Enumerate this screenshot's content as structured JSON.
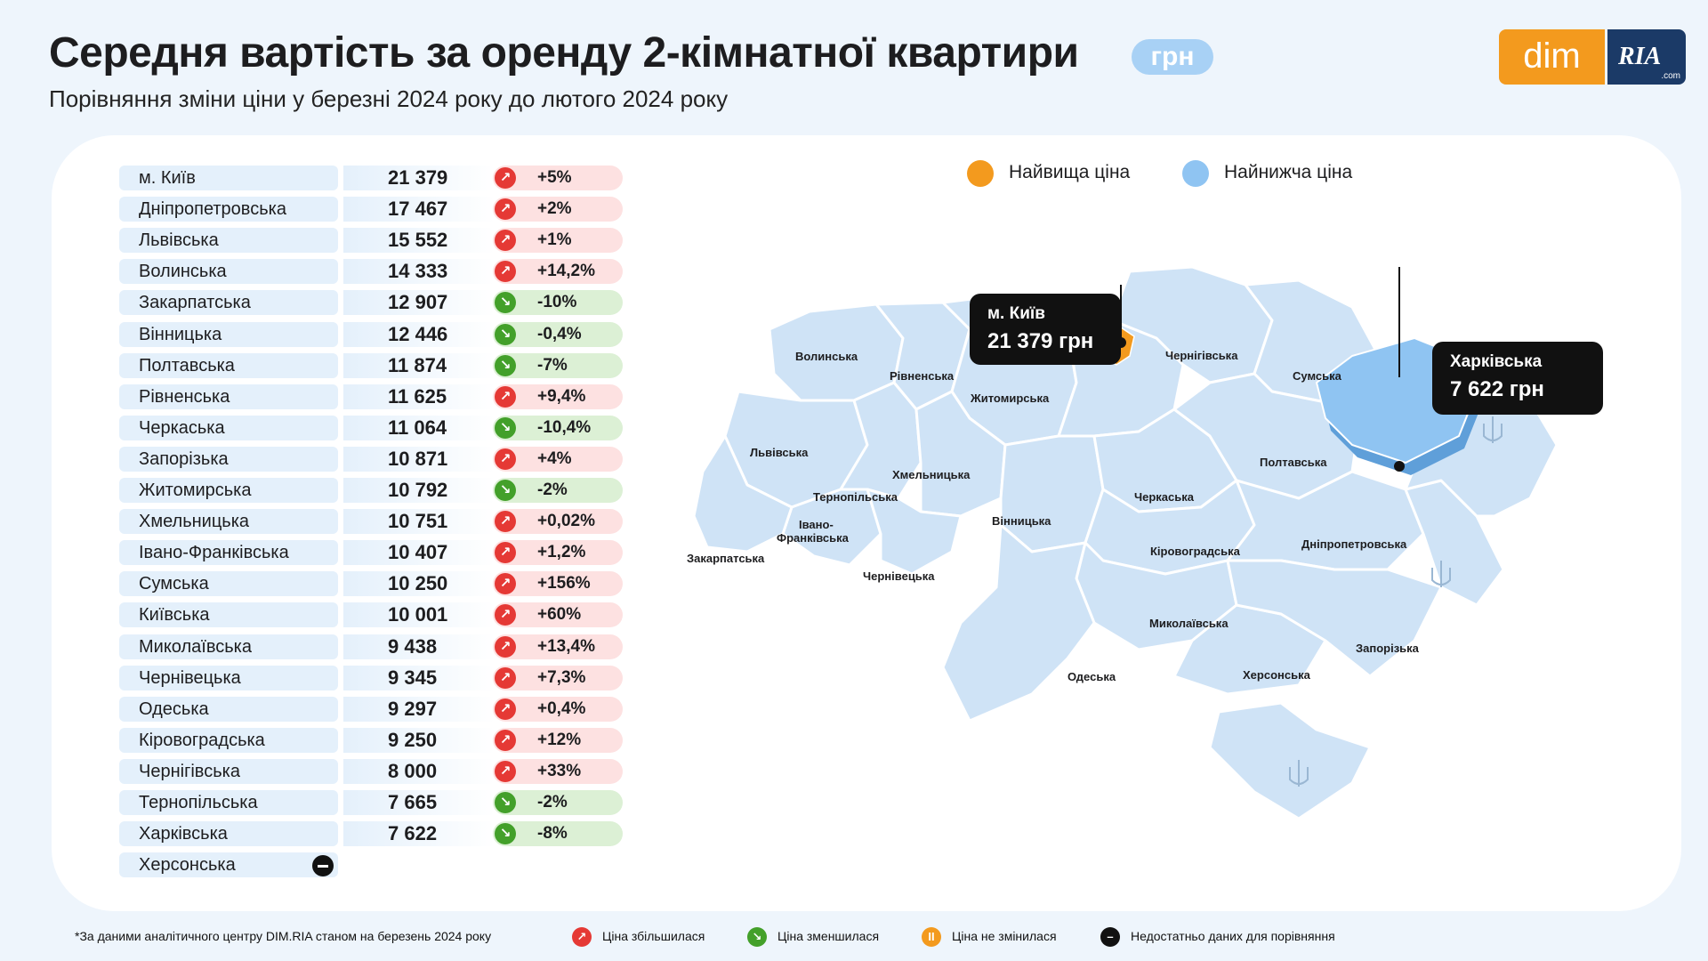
{
  "header": {
    "title": "Середня вартість за оренду 2-кімнатної квартири",
    "unit": "грн",
    "subtitle": "Порівняння зміни ціни у березні 2024 року до лютого 2024 року"
  },
  "logo": {
    "dim": "dim",
    "ria": "RIA",
    "com": ".com"
  },
  "legend": {
    "highest": "Найвища ціна",
    "lowest": "Найнижча ціна",
    "highest_color": "#f39a1e",
    "lowest_color": "#8fc4f2"
  },
  "regions": [
    {
      "name": "м. Київ",
      "value": "21 379",
      "change": "+5%",
      "direction": "up"
    },
    {
      "name": "Дніпропетровська",
      "value": "17 467",
      "change": "+2%",
      "direction": "up"
    },
    {
      "name": "Львівська",
      "value": "15 552",
      "change": "+1%",
      "direction": "up"
    },
    {
      "name": "Волинська",
      "value": "14 333",
      "change": "+14,2%",
      "direction": "up"
    },
    {
      "name": "Закарпатська",
      "value": "12 907",
      "change": "-10%",
      "direction": "down"
    },
    {
      "name": "Вінницька",
      "value": "12 446",
      "change": "-0,4%",
      "direction": "down"
    },
    {
      "name": "Полтавська",
      "value": "11 874",
      "change": "-7%",
      "direction": "down"
    },
    {
      "name": "Рівненська",
      "value": "11 625",
      "change": "+9,4%",
      "direction": "up"
    },
    {
      "name": "Черкаська",
      "value": "11 064",
      "change": "-10,4%",
      "direction": "down"
    },
    {
      "name": "Запорізька",
      "value": "10 871",
      "change": "+4%",
      "direction": "up"
    },
    {
      "name": "Житомирська",
      "value": "10 792",
      "change": "-2%",
      "direction": "down"
    },
    {
      "name": "Хмельницька",
      "value": "10 751",
      "change": "+0,02%",
      "direction": "up"
    },
    {
      "name": "Івано-Франківська",
      "value": "10 407",
      "change": "+1,2%",
      "direction": "up"
    },
    {
      "name": "Сумська",
      "value": "10 250",
      "change": "+156%",
      "direction": "up"
    },
    {
      "name": "Київська",
      "value": "10 001",
      "change": "+60%",
      "direction": "up"
    },
    {
      "name": "Миколаївська",
      "value": "9 438",
      "change": "+13,4%",
      "direction": "up"
    },
    {
      "name": "Чернівецька",
      "value": "9 345",
      "change": "+7,3%",
      "direction": "up"
    },
    {
      "name": "Одеська",
      "value": "9 297",
      "change": "+0,4%",
      "direction": "up"
    },
    {
      "name": "Кіровоградська",
      "value": "9 250",
      "change": "+12%",
      "direction": "up"
    },
    {
      "name": "Чернігівська",
      "value": "8 000",
      "change": "+33%",
      "direction": "up"
    },
    {
      "name": "Тернопільська",
      "value": "7 665",
      "change": "-2%",
      "direction": "down"
    },
    {
      "name": "Харківська",
      "value": "7 622",
      "change": "-8%",
      "direction": "down"
    },
    {
      "name": "Херсонська",
      "value": "",
      "change": "",
      "direction": "nodata"
    }
  ],
  "map": {
    "labels": {
      "volyn": "Волинська",
      "rivne": "Рівненська",
      "zhytomyr": "Житомирська",
      "chernihiv": "Чернігівська",
      "sumy": "Сумська",
      "lviv": "Львівська",
      "ternopil": "Тернопільська",
      "khmelnytskyi": "Хмельницька",
      "vinnytsia": "Вінницька",
      "cherkasy": "Черкаська",
      "poltava": "Полтавська",
      "ivano": "Івано-",
      "ivano2": "Франківська",
      "zakarpattia": "Закарпатська",
      "chernivtsi": "Чернівецька",
      "kirovohrad": "Кіровоградська",
      "dnipro": "Дніпропетровська",
      "mykolaiv": "Миколаївська",
      "odesa": "Одеська",
      "kherson": "Херсонська",
      "zaporizhzhia": "Запорізька"
    },
    "callout_high": {
      "name": "м. Київ",
      "value": "21 379 грн"
    },
    "callout_low": {
      "name": "Харківська",
      "value": "7 622 грн"
    }
  },
  "footer": {
    "source": "*За даними аналітичного центру DIM.RIA станом на березень 2024 року",
    "up": "Ціна збільшилася",
    "down": "Ціна зменшилася",
    "same": "Ціна не змінилася",
    "nodata": "Недостатньо даних для порівняння"
  },
  "colors": {
    "up": "#e53935",
    "down": "#43a02a",
    "same": "#f39a1e",
    "nodata": "#111111",
    "map_fill": "#cfe3f6",
    "kharkiv_fill": "#8fc4f2",
    "kyiv_fill": "#f39a1e"
  }
}
